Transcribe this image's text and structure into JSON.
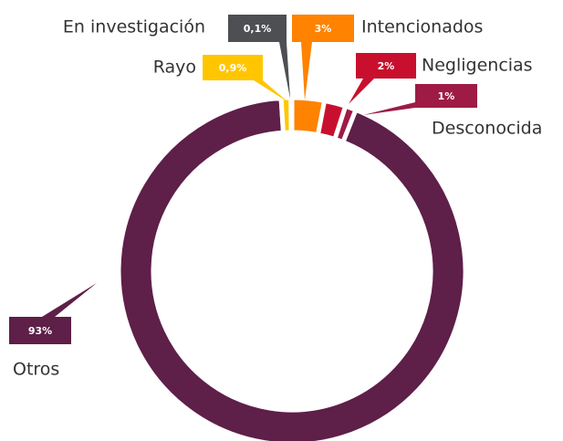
{
  "chart_data": {
    "type": "donut",
    "categories": [
      "Intencionados",
      "Negligencias",
      "Desconocida",
      "Otros",
      "Rayo",
      "En investigación"
    ],
    "values": [
      3,
      2,
      1,
      93,
      0.9,
      0.1
    ],
    "value_labels": [
      "3%",
      "2%",
      "1%",
      "93%",
      "0,9%",
      "0,1%"
    ],
    "colors": [
      "#ff8200",
      "#c8102e",
      "#9e1b45",
      "#5e1f48",
      "#ffc600",
      "#4d4f53"
    ]
  }
}
